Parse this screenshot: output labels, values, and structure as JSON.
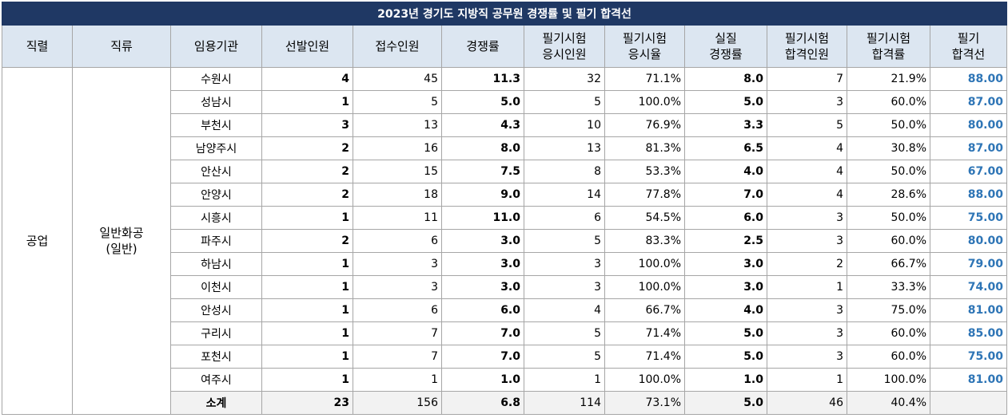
{
  "title": "2023년 경기도 지방직 공무원 경쟁률 및 필기 합격선",
  "headers": [
    {
      "l1": "직렬",
      "l2": ""
    },
    {
      "l1": "직류",
      "l2": ""
    },
    {
      "l1": "임용기관",
      "l2": ""
    },
    {
      "l1": "선발인원",
      "l2": ""
    },
    {
      "l1": "접수인원",
      "l2": ""
    },
    {
      "l1": "경쟁률",
      "l2": ""
    },
    {
      "l1": "필기시험",
      "l2": "응시인원"
    },
    {
      "l1": "필기시험",
      "l2": "응시율"
    },
    {
      "l1": "실질",
      "l2": "경쟁률"
    },
    {
      "l1": "필기시험",
      "l2": "합격인원"
    },
    {
      "l1": "필기시험",
      "l2": "합격률"
    },
    {
      "l1": "필기",
      "l2": "합격선"
    }
  ],
  "group": {
    "series": "공업",
    "category_l1": "일반화공",
    "category_l2": "(일반)"
  },
  "rows": [
    {
      "org": "수원시",
      "sel": "4",
      "apply": "45",
      "comp": "11.3",
      "test_n": "32",
      "test_rate": "71.1%",
      "real_comp": "8.0",
      "pass_n": "7",
      "pass_rate": "21.9%",
      "cutoff": "88.00"
    },
    {
      "org": "성남시",
      "sel": "1",
      "apply": "5",
      "comp": "5.0",
      "test_n": "5",
      "test_rate": "100.0%",
      "real_comp": "5.0",
      "pass_n": "3",
      "pass_rate": "60.0%",
      "cutoff": "87.00"
    },
    {
      "org": "부천시",
      "sel": "3",
      "apply": "13",
      "comp": "4.3",
      "test_n": "10",
      "test_rate": "76.9%",
      "real_comp": "3.3",
      "pass_n": "5",
      "pass_rate": "50.0%",
      "cutoff": "80.00"
    },
    {
      "org": "남양주시",
      "sel": "2",
      "apply": "16",
      "comp": "8.0",
      "test_n": "13",
      "test_rate": "81.3%",
      "real_comp": "6.5",
      "pass_n": "4",
      "pass_rate": "30.8%",
      "cutoff": "87.00"
    },
    {
      "org": "안산시",
      "sel": "2",
      "apply": "15",
      "comp": "7.5",
      "test_n": "8",
      "test_rate": "53.3%",
      "real_comp": "4.0",
      "pass_n": "4",
      "pass_rate": "50.0%",
      "cutoff": "67.00"
    },
    {
      "org": "안양시",
      "sel": "2",
      "apply": "18",
      "comp": "9.0",
      "test_n": "14",
      "test_rate": "77.8%",
      "real_comp": "7.0",
      "pass_n": "4",
      "pass_rate": "28.6%",
      "cutoff": "88.00"
    },
    {
      "org": "시흥시",
      "sel": "1",
      "apply": "11",
      "comp": "11.0",
      "test_n": "6",
      "test_rate": "54.5%",
      "real_comp": "6.0",
      "pass_n": "3",
      "pass_rate": "50.0%",
      "cutoff": "75.00"
    },
    {
      "org": "파주시",
      "sel": "2",
      "apply": "6",
      "comp": "3.0",
      "test_n": "5",
      "test_rate": "83.3%",
      "real_comp": "2.5",
      "pass_n": "3",
      "pass_rate": "60.0%",
      "cutoff": "80.00"
    },
    {
      "org": "하남시",
      "sel": "1",
      "apply": "3",
      "comp": "3.0",
      "test_n": "3",
      "test_rate": "100.0%",
      "real_comp": "3.0",
      "pass_n": "2",
      "pass_rate": "66.7%",
      "cutoff": "79.00"
    },
    {
      "org": "이천시",
      "sel": "1",
      "apply": "3",
      "comp": "3.0",
      "test_n": "3",
      "test_rate": "100.0%",
      "real_comp": "3.0",
      "pass_n": "1",
      "pass_rate": "33.3%",
      "cutoff": "74.00"
    },
    {
      "org": "안성시",
      "sel": "1",
      "apply": "6",
      "comp": "6.0",
      "test_n": "4",
      "test_rate": "66.7%",
      "real_comp": "4.0",
      "pass_n": "3",
      "pass_rate": "75.0%",
      "cutoff": "81.00"
    },
    {
      "org": "구리시",
      "sel": "1",
      "apply": "7",
      "comp": "7.0",
      "test_n": "5",
      "test_rate": "71.4%",
      "real_comp": "5.0",
      "pass_n": "3",
      "pass_rate": "60.0%",
      "cutoff": "85.00"
    },
    {
      "org": "포천시",
      "sel": "1",
      "apply": "7",
      "comp": "7.0",
      "test_n": "5",
      "test_rate": "71.4%",
      "real_comp": "5.0",
      "pass_n": "3",
      "pass_rate": "60.0%",
      "cutoff": "75.00"
    },
    {
      "org": "여주시",
      "sel": "1",
      "apply": "1",
      "comp": "1.0",
      "test_n": "1",
      "test_rate": "100.0%",
      "real_comp": "1.0",
      "pass_n": "1",
      "pass_rate": "100.0%",
      "cutoff": "81.00"
    }
  ],
  "subtotal": {
    "org": "소계",
    "sel": "23",
    "apply": "156",
    "comp": "6.8",
    "test_n": "114",
    "test_rate": "73.1%",
    "real_comp": "5.0",
    "pass_n": "46",
    "pass_rate": "40.4%",
    "cutoff": ""
  },
  "colors": {
    "title_bg": "#1f3864",
    "header_bg": "#dce6f1",
    "cutoff_text": "#2e75b6",
    "subtotal_bg": "#f2f2f2"
  }
}
